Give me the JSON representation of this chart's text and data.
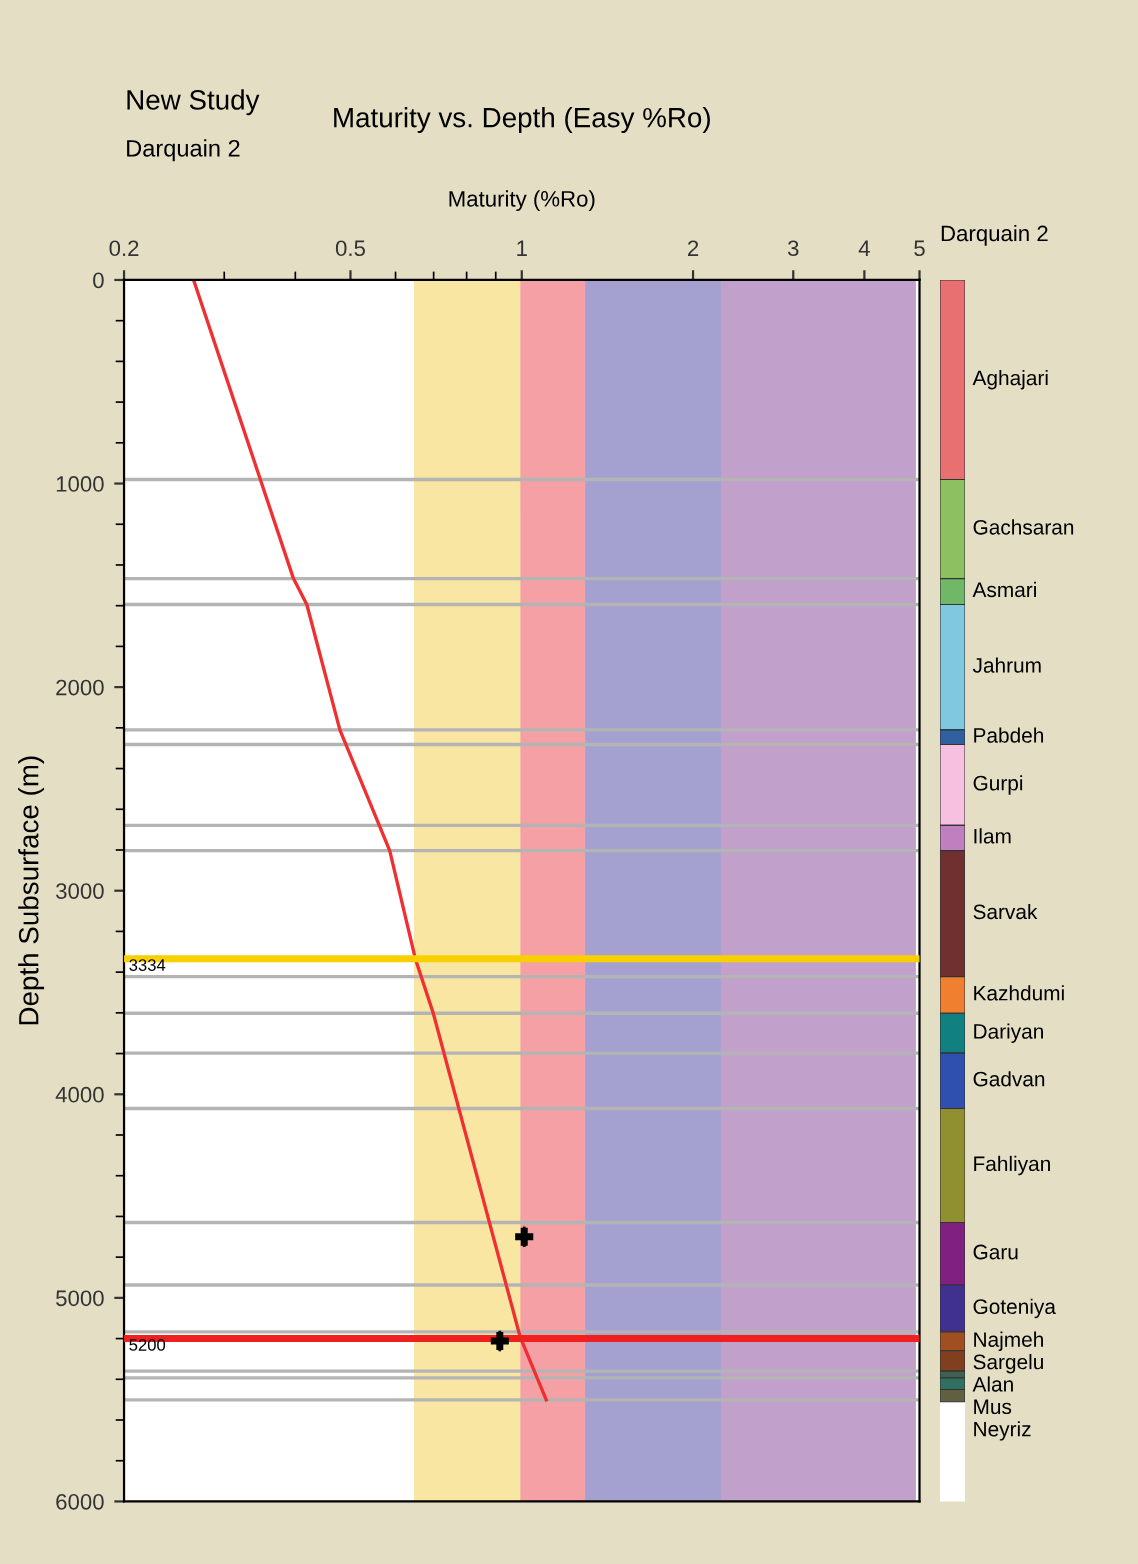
{
  "chart_data": [
    {
      "type": "line",
      "title": "Maturity vs. Depth (Easy %Ro)",
      "xlabel": "Maturity (%Ro)",
      "ylabel": "Depth Subsurface (m)",
      "annotations": [
        "New Study",
        "Darquain 2"
      ],
      "log": "x",
      "xlim": [
        0.2,
        5
      ],
      "xticks": [
        0.2,
        0.5,
        1,
        2,
        3,
        4,
        5
      ],
      "ylim": [
        6000,
        0
      ],
      "yticks": [
        0,
        1000,
        2000,
        3000,
        4000,
        5000,
        6000
      ],
      "bands": [
        {
          "axis": "x",
          "from": 0.65,
          "to": 1.0,
          "color": "#f9e6a2"
        },
        {
          "axis": "x",
          "from": 1.0,
          "to": 1.3,
          "color": "#f4a0a4"
        },
        {
          "axis": "x",
          "from": 1.3,
          "to": 2.25,
          "color": "#a4a0d0"
        },
        {
          "axis": "x",
          "from": 2.25,
          "to": 4.9,
          "color": "#c2a0cc"
        }
      ],
      "ref_lines": [
        {
          "axis": "y",
          "value": 980,
          "color": "#b4b4b4"
        },
        {
          "axis": "y",
          "value": 1467,
          "color": "#b4b4b4"
        },
        {
          "axis": "y",
          "value": 1594,
          "color": "#b4b4b4"
        },
        {
          "axis": "y",
          "value": 2210,
          "color": "#b4b4b4"
        },
        {
          "axis": "y",
          "value": 2282,
          "color": "#b4b4b4"
        },
        {
          "axis": "y",
          "value": 2679,
          "color": "#b4b4b4"
        },
        {
          "axis": "y",
          "value": 2803,
          "color": "#b4b4b4"
        },
        {
          "axis": "y",
          "value": 3422,
          "color": "#b4b4b4"
        },
        {
          "axis": "y",
          "value": 3602,
          "color": "#b4b4b4"
        },
        {
          "axis": "y",
          "value": 3798,
          "color": "#b4b4b4"
        },
        {
          "axis": "y",
          "value": 4070,
          "color": "#b4b4b4"
        },
        {
          "axis": "y",
          "value": 4630,
          "color": "#b4b4b4"
        },
        {
          "axis": "y",
          "value": 4937,
          "color": "#b4b4b4"
        },
        {
          "axis": "y",
          "value": 5167,
          "color": "#b4b4b4"
        },
        {
          "axis": "y",
          "value": 5360,
          "color": "#b4b4b4"
        },
        {
          "axis": "y",
          "value": 5393,
          "color": "#b4b4b4"
        },
        {
          "axis": "y",
          "value": 5501,
          "color": "#b4b4b4"
        },
        {
          "axis": "y",
          "value": 3334,
          "label": "3334",
          "color": "#f8d000"
        },
        {
          "axis": "y",
          "value": 5200,
          "label": "5200",
          "color": "#f02020"
        }
      ],
      "series": [
        {
          "type": "line",
          "color": "#f03030",
          "x": [
            0.265,
            0.397,
            0.419,
            0.479,
            0.586,
            0.65,
            0.699,
            0.993,
            1.104
          ],
          "values": [
            0,
            1467,
            1594,
            2210,
            2803,
            3334,
            3602,
            5190,
            5501
          ]
        },
        {
          "type": "scatter",
          "color": "#000000",
          "marker": "cross",
          "x": [
            1.01,
            0.915
          ],
          "values": [
            4700,
            5212
          ],
          "errors": [
            50,
            50
          ]
        }
      ]
    },
    {
      "type": "bar",
      "stacked": true,
      "title": "Darquain 2",
      "categories": [
        null
      ],
      "ylim": [
        6000,
        0
      ],
      "tick_labels": false,
      "series": [
        {
          "name": "Aghajari",
          "color": "#e87070",
          "values": [
            980
          ]
        },
        {
          "name": "Gachsaran",
          "color": "#8cc060",
          "values": [
            487
          ]
        },
        {
          "name": "Asmari",
          "color": "#70b868",
          "values": [
            127
          ]
        },
        {
          "name": "Jahrum",
          "color": "#80c8e0",
          "values": [
            616
          ]
        },
        {
          "name": "Pabdeh",
          "color": "#3060a0",
          "values": [
            72
          ]
        },
        {
          "name": "Gurpi",
          "color": "#f8c0e0",
          "values": [
            397
          ]
        },
        {
          "name": "Ilam",
          "color": "#c080c0",
          "values": [
            124
          ]
        },
        {
          "name": "Sarvak",
          "color": "#703030",
          "values": [
            619
          ]
        },
        {
          "name": "Kazhdumi",
          "color": "#f08030",
          "values": [
            180
          ]
        },
        {
          "name": "Dariyan",
          "color": "#108080",
          "values": [
            196
          ]
        },
        {
          "name": "Gadvan",
          "color": "#3050b0",
          "values": [
            272
          ]
        },
        {
          "name": "Fahliyan",
          "color": "#909030",
          "values": [
            560
          ]
        },
        {
          "name": "Garu",
          "color": "#802080",
          "values": [
            307
          ]
        },
        {
          "name": "Goteniya",
          "color": "#403090",
          "values": [
            230
          ]
        },
        {
          "name": "Najmeh",
          "color": "#a05020",
          "values": [
            93
          ]
        },
        {
          "name": "Sargelu",
          "color": "#804020",
          "values": [
            100
          ]
        },
        {
          "name": "Alan",
          "color": "#406050",
          "values": [
            33
          ]
        },
        {
          "name": "Mus",
          "color": "#307060",
          "values": [
            57
          ]
        },
        {
          "name": "Neyriz",
          "color": "#606040",
          "values": [
            60
          ]
        }
      ]
    }
  ]
}
